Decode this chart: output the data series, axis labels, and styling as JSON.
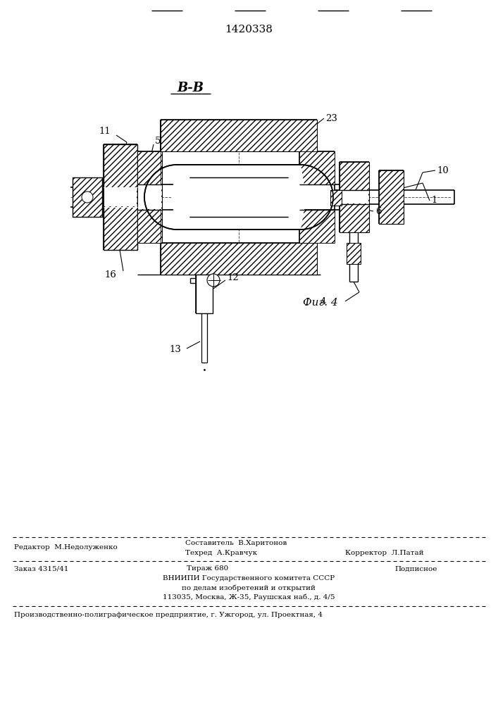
{
  "patent_number": "1420338",
  "view_label": "В-В",
  "fig_label": "Фиг. 4",
  "footer": {
    "editor": "Редактор  М.Недолуженко",
    "composer": "Составитель  В.Харитонов",
    "techred": "Техред  А.Кравчук",
    "corrector": "Корректор  Л.Патай",
    "order": "Заказ 4315/41",
    "circulation": "Тираж 680",
    "subscription": "Подписное",
    "vniiipi_line1": "ВНИИПИ Государственного комитета СССР",
    "vniiipi_line2": "по делам изобретений и открытий",
    "vniiipi_line3": "113035, Москва, Ж-35, Раушская наб., д. 4/5",
    "production": "Производственно-полиграфическое предприятие, г. Ужгород, ул. Проектная, 4"
  },
  "bg_color": "#ffffff"
}
